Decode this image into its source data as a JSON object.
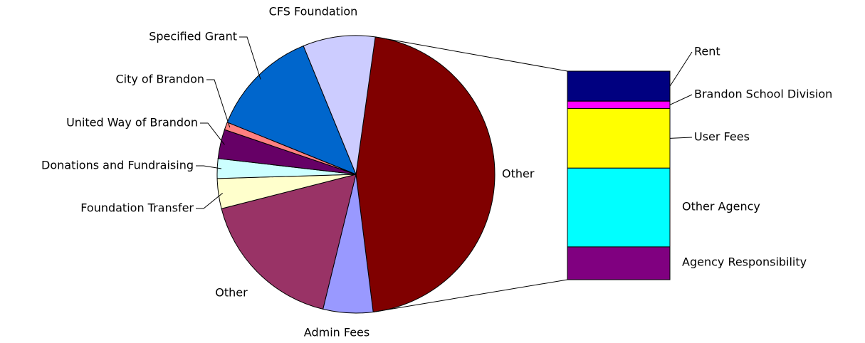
{
  "chart_data": {
    "type": "pie",
    "pie": {
      "categories": [
        "Other",
        "Admin Fees",
        "Other",
        "Foundation Transfer",
        "Donations and Fundraising",
        "United Way of Brandon",
        "City of Brandon",
        "Specified Grant",
        "CFS Foundation"
      ],
      "values": [
        45.8,
        5.8,
        17.2,
        3.5,
        2.3,
        3.4,
        0.9,
        12.7,
        8.4
      ],
      "colors": [
        "#800000",
        "#9999ff",
        "#993366",
        "#ffffcc",
        "#ccffff",
        "#660066",
        "#ff8080",
        "#0066cc",
        "#ccccff"
      ]
    },
    "bar": {
      "categories": [
        "Rent",
        "Brandon School Division",
        "User Fees",
        "Other Agency",
        "Agency Responsibility"
      ],
      "values": [
        6.6,
        1.6,
        13.1,
        17.3,
        7.2
      ],
      "colors": [
        "#000080",
        "#ff00ff",
        "#ffff00",
        "#00ffff",
        "#800080"
      ]
    }
  }
}
